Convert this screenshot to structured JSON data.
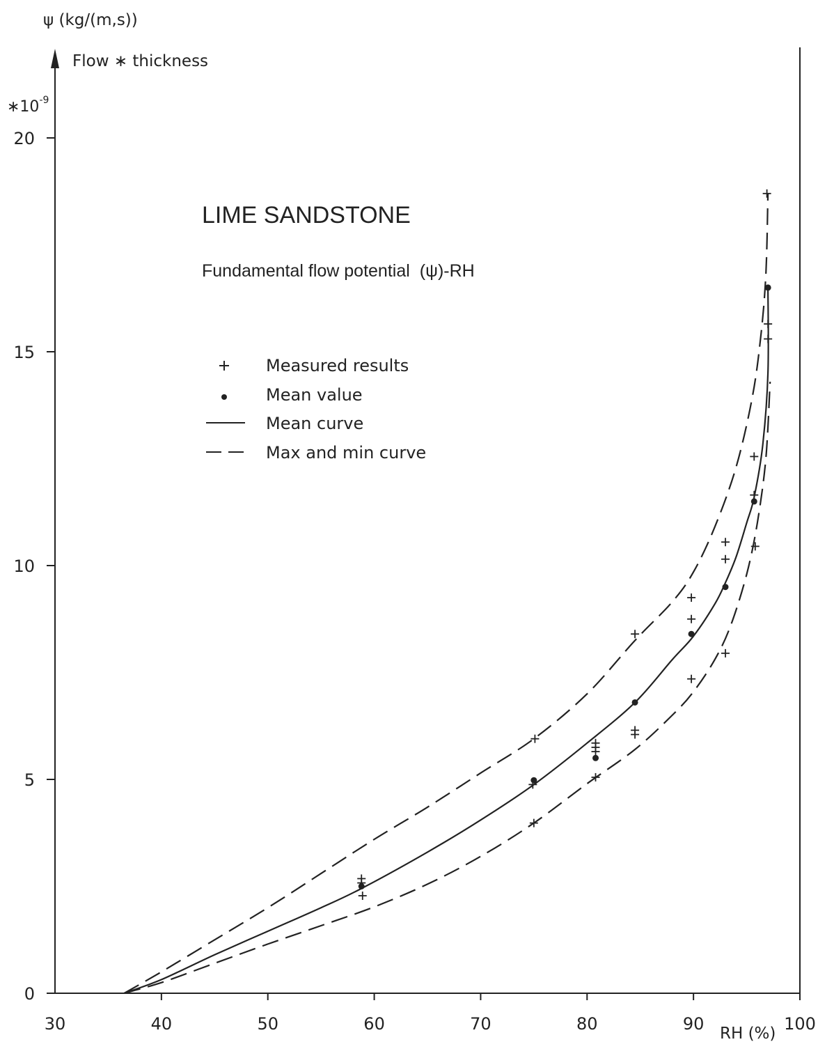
{
  "chart_data": {
    "type": "line",
    "title": "LIME SANDSTONE",
    "subtitle": "Fundamental flow potential",
    "subtitle_symbol": "(ψ)-RH",
    "ylabel_unit": "ψ (kg/(m,s))",
    "ylabel": "Flow ∗ thickness",
    "y_multiplier": "∗10",
    "y_multiplier_exp": "-9",
    "xlabel": "RH (%)",
    "xlim": [
      30,
      100
    ],
    "ylim": [
      0,
      20
    ],
    "x_ticks": [
      "30",
      "40",
      "50",
      "60",
      "70",
      "80",
      "90",
      "100"
    ],
    "y_ticks": [
      "0",
      "5",
      "10",
      "15",
      "20"
    ],
    "grid": false,
    "legend_position": "center-left",
    "legend": [
      {
        "marker": "+",
        "label": "Measured results"
      },
      {
        "marker": "•",
        "label": "Mean value"
      },
      {
        "marker": "solid-line",
        "label": "Mean curve"
      },
      {
        "marker": "dashed-line",
        "label": "Max and min curve"
      }
    ],
    "series": [
      {
        "name": "Measured results",
        "kind": "points",
        "marker": "+",
        "x": [
          58.8,
          58.8,
          58.9,
          74.9,
          75.0,
          75.1,
          80.8,
          80.8,
          80.8,
          80.8,
          84.5,
          84.5,
          84.5,
          89.8,
          89.8,
          89.8,
          93.0,
          93.0,
          93.0,
          95.7,
          95.7,
          95.8,
          96.9,
          97.0,
          97.0
        ],
        "y": [
          2.68,
          2.58,
          2.28,
          4.88,
          3.98,
          5.95,
          5.05,
          5.65,
          5.75,
          5.85,
          6.05,
          6.15,
          8.4,
          9.25,
          8.75,
          7.35,
          10.55,
          10.15,
          7.95,
          12.55,
          11.65,
          10.45,
          18.7,
          15.65,
          15.3
        ]
      },
      {
        "name": "Mean value",
        "kind": "points",
        "marker": "dot",
        "x": [
          58.8,
          75.0,
          80.8,
          84.5,
          89.8,
          93.0,
          95.7,
          97.0
        ],
        "y": [
          2.5,
          4.98,
          5.5,
          6.8,
          8.4,
          9.5,
          11.5,
          16.5
        ]
      },
      {
        "name": "Mean curve",
        "kind": "line",
        "style": "solid",
        "x": [
          36.5,
          40,
          45,
          50,
          55,
          58.8,
          65,
          70,
          75,
          80,
          84.5,
          88,
          90,
          92,
          93,
          94,
          95,
          95.7,
          96.5,
          97.0,
          97.0
        ],
        "y": [
          0,
          0.32,
          0.9,
          1.45,
          2.0,
          2.45,
          3.3,
          4.05,
          4.88,
          5.85,
          6.8,
          7.8,
          8.35,
          9.1,
          9.6,
          10.2,
          11.0,
          11.6,
          12.8,
          14.5,
          16.5
        ]
      },
      {
        "name": "Max curve",
        "kind": "line",
        "style": "dashed",
        "x": [
          36.5,
          40,
          45,
          50,
          55,
          60,
          65,
          70,
          75,
          80,
          84.5,
          88,
          90,
          92,
          94,
          95.5,
          96.3,
          96.8,
          97.0
        ],
        "y": [
          0,
          0.5,
          1.25,
          2.0,
          2.8,
          3.6,
          4.35,
          5.15,
          5.95,
          7.0,
          8.25,
          9.15,
          9.85,
          10.9,
          12.3,
          13.9,
          15.3,
          16.8,
          18.7
        ]
      },
      {
        "name": "Min curve",
        "kind": "line",
        "style": "dashed",
        "x": [
          36.5,
          40,
          45,
          50,
          55,
          60,
          65,
          70,
          75,
          80,
          84.5,
          88,
          90,
          92,
          93.5,
          95,
          96,
          96.8,
          97.2
        ],
        "y": [
          0,
          0.25,
          0.7,
          1.15,
          1.58,
          2.02,
          2.55,
          3.2,
          3.98,
          4.9,
          5.7,
          6.5,
          7.05,
          7.8,
          8.6,
          9.8,
          11.0,
          12.5,
          14.3
        ]
      }
    ]
  }
}
